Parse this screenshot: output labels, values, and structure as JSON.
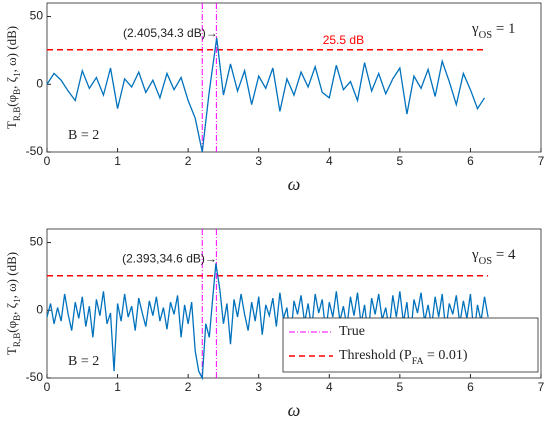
{
  "chart_data": [
    {
      "type": "line",
      "x": [
        0,
        0.1,
        0.2,
        0.3,
        0.4,
        0.5,
        0.6,
        0.7,
        0.8,
        0.9,
        1.0,
        1.1,
        1.2,
        1.3,
        1.4,
        1.5,
        1.6,
        1.7,
        1.8,
        1.9,
        2.0,
        2.1,
        2.2,
        2.3,
        2.405,
        2.5,
        2.6,
        2.7,
        2.8,
        2.9,
        3.0,
        3.1,
        3.2,
        3.3,
        3.4,
        3.5,
        3.6,
        3.7,
        3.8,
        3.9,
        4.0,
        4.1,
        4.2,
        4.3,
        4.4,
        4.5,
        4.6,
        4.7,
        4.8,
        4.9,
        5.0,
        5.1,
        5.2,
        5.3,
        5.4,
        5.5,
        5.6,
        5.7,
        5.8,
        5.9,
        6.0,
        6.1,
        6.2
      ],
      "series": [
        {
          "color": "#0072bd",
          "values": [
            0,
            8,
            3,
            -5,
            -12,
            10,
            -3,
            5,
            -8,
            12,
            -18,
            4,
            -2,
            9,
            -6,
            3,
            -10,
            8,
            -4,
            5,
            -12,
            -25,
            -50,
            -5,
            34.3,
            -8,
            15,
            -5,
            10,
            -15,
            6,
            -3,
            12,
            -20,
            4,
            -8,
            9,
            -2,
            13,
            -6,
            -10,
            14,
            -4,
            2,
            -12,
            16,
            -5,
            8,
            -7,
            4,
            12,
            -22,
            6,
            -3,
            11,
            -9,
            17,
            2,
            -15,
            8,
            -4,
            -18,
            -10
          ]
        }
      ],
      "xlim": [
        0,
        7
      ],
      "xticks": [
        0,
        1,
        2,
        3,
        4,
        5,
        6,
        7
      ],
      "ylim": [
        -50,
        60
      ],
      "yticks": [
        -50,
        0,
        50
      ],
      "xlabel": "ω",
      "ylabel": [
        "T",
        "R,B",
        "(φ",
        "B",
        ", ζ",
        "1",
        ", ω) (dB)"
      ],
      "gamma_label": [
        "γ",
        "OS",
        " = 1"
      ],
      "b_label": "B = 2",
      "annotation": {
        "text": "(2.405,34.3 dB)→",
        "x": 2.405,
        "y": 34.3
      },
      "true_lines": {
        "x": [
          2.2,
          2.4
        ],
        "color": "#ff00ff"
      },
      "threshold": {
        "value": 25.5,
        "value_label": "25.5 dB",
        "color": "#ff0000"
      }
    },
    {
      "type": "line",
      "x": [
        0,
        0.05,
        0.1,
        0.15,
        0.2,
        0.25,
        0.3,
        0.35,
        0.4,
        0.45,
        0.5,
        0.55,
        0.6,
        0.65,
        0.7,
        0.75,
        0.8,
        0.85,
        0.9,
        0.95,
        1.0,
        1.05,
        1.1,
        1.15,
        1.2,
        1.25,
        1.3,
        1.35,
        1.4,
        1.45,
        1.5,
        1.55,
        1.6,
        1.65,
        1.7,
        1.75,
        1.8,
        1.85,
        1.9,
        1.95,
        2.0,
        2.05,
        2.1,
        2.15,
        2.2,
        2.25,
        2.3,
        2.35,
        2.393,
        2.45,
        2.5,
        2.55,
        2.6,
        2.65,
        2.7,
        2.75,
        2.8,
        2.85,
        2.9,
        2.95,
        3.0,
        3.05,
        3.1,
        3.15,
        3.2,
        3.25,
        3.3,
        3.35,
        3.4,
        3.45,
        3.5,
        3.55,
        3.6,
        3.65,
        3.7,
        3.75,
        3.8,
        3.85,
        3.9,
        3.95,
        4.0,
        4.05,
        4.1,
        4.15,
        4.2,
        4.25,
        4.3,
        4.35,
        4.4,
        4.45,
        4.5,
        4.55,
        4.6,
        4.65,
        4.7,
        4.75,
        4.8,
        4.85,
        4.9,
        4.95,
        5.0,
        5.05,
        5.1,
        5.15,
        5.2,
        5.25,
        5.3,
        5.35,
        5.4,
        5.45,
        5.5,
        5.55,
        5.6,
        5.65,
        5.7,
        5.75,
        5.8,
        5.85,
        5.9,
        5.95,
        6.0,
        6.05,
        6.1,
        6.15,
        6.2,
        6.25
      ],
      "series": [
        {
          "color": "#0072bd",
          "values": [
            -5,
            5,
            -10,
            2,
            -8,
            12,
            -3,
            -15,
            6,
            -6,
            10,
            -12,
            3,
            -20,
            8,
            -4,
            14,
            -10,
            -2,
            -45,
            5,
            -8,
            12,
            -5,
            3,
            -15,
            9,
            -2,
            -12,
            7,
            -4,
            10,
            -8,
            2,
            -14,
            6,
            -3,
            11,
            -20,
            4,
            -10,
            6,
            -30,
            -45,
            -50,
            -10,
            -20,
            10,
            34.6,
            15,
            -10,
            5,
            -25,
            8,
            -5,
            12,
            -3,
            -15,
            6,
            -8,
            10,
            -18,
            4,
            -4,
            9,
            -12,
            13,
            -6,
            2,
            -22,
            7,
            -3,
            11,
            -9,
            5,
            -14,
            12,
            -2,
            8,
            -16,
            6,
            -5,
            14,
            -8,
            3,
            -12,
            10,
            -4,
            13,
            -10,
            4,
            -18,
            9,
            -3,
            12,
            -7,
            2,
            -14,
            11,
            -5,
            14,
            -9,
            6,
            -20,
            8,
            -2,
            13,
            -8,
            4,
            -12,
            10,
            -5,
            12,
            -15,
            5,
            -3,
            11,
            -10,
            7,
            -6,
            12,
            -18,
            4,
            -8,
            10,
            -5
          ]
        }
      ],
      "xlim": [
        0,
        7
      ],
      "xticks": [
        0,
        1,
        2,
        3,
        4,
        5,
        6,
        7
      ],
      "ylim": [
        -50,
        60
      ],
      "yticks": [
        -50,
        0,
        50
      ],
      "xlabel": "ω",
      "ylabel": [
        "T",
        "R,B",
        "(φ",
        "B",
        ", ζ",
        "1",
        ", ω) (dB)"
      ],
      "gamma_label": [
        "γ",
        "OS",
        " = 4"
      ],
      "b_label": "B = 2",
      "annotation": {
        "text": "(2.393,34.6 dB)→",
        "x": 2.393,
        "y": 34.6
      },
      "true_lines": {
        "name": "True",
        "x": [
          2.2,
          2.4
        ],
        "color": "#ff00ff"
      },
      "threshold": {
        "name": [
          "Threshold (P",
          "FA",
          " = 0.01)"
        ],
        "value": 25.5,
        "color": "#ff0000"
      },
      "legend": "lower right"
    }
  ]
}
